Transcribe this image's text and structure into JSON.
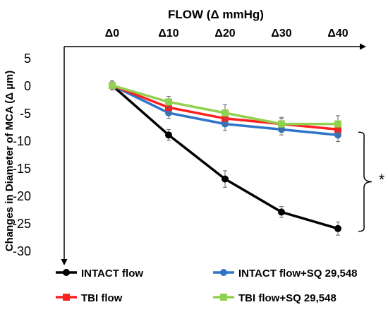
{
  "chart_data": {
    "type": "line",
    "title": "FLOW (Δ mmHg)",
    "ylabel": "Changes in Diameter of MCA (Δ µm)",
    "categories": [
      "Δ0",
      "Δ10",
      "Δ20",
      "Δ30",
      "Δ40"
    ],
    "y_ticks": [
      5,
      0,
      -5,
      -10,
      -15,
      -20,
      -25,
      -30
    ],
    "ylim": [
      -32,
      7
    ],
    "x_axis_position": "top",
    "grid": false,
    "legend_position": "bottom",
    "significance_label": "*",
    "series": [
      {
        "name": "INTACT flow",
        "color": "#000000",
        "marker": "circle",
        "values": [
          0,
          -9,
          -17,
          -23,
          -26
        ],
        "errors": [
          0.8,
          1.0,
          1.5,
          1.0,
          1.2
        ]
      },
      {
        "name": "INTACT flow+SQ 29,548",
        "color": "#2e75c8",
        "marker": "circle",
        "values": [
          0,
          -5,
          -7,
          -8,
          -9
        ],
        "errors": [
          0.8,
          1.0,
          1.2,
          1.0,
          1.2
        ]
      },
      {
        "name": "TBI flow",
        "color": "#ff1f1f",
        "marker": "square",
        "values": [
          0,
          -4,
          -6,
          -7,
          -8
        ],
        "errors": [
          0.8,
          1.0,
          1.2,
          1.0,
          1.2
        ]
      },
      {
        "name": "TBI flow+SQ 29,548",
        "color": "#92d050",
        "marker": "square",
        "values": [
          0,
          -3,
          -5,
          -7,
          -7
        ],
        "errors": [
          0.8,
          1.0,
          1.5,
          1.2,
          1.5
        ]
      }
    ]
  }
}
